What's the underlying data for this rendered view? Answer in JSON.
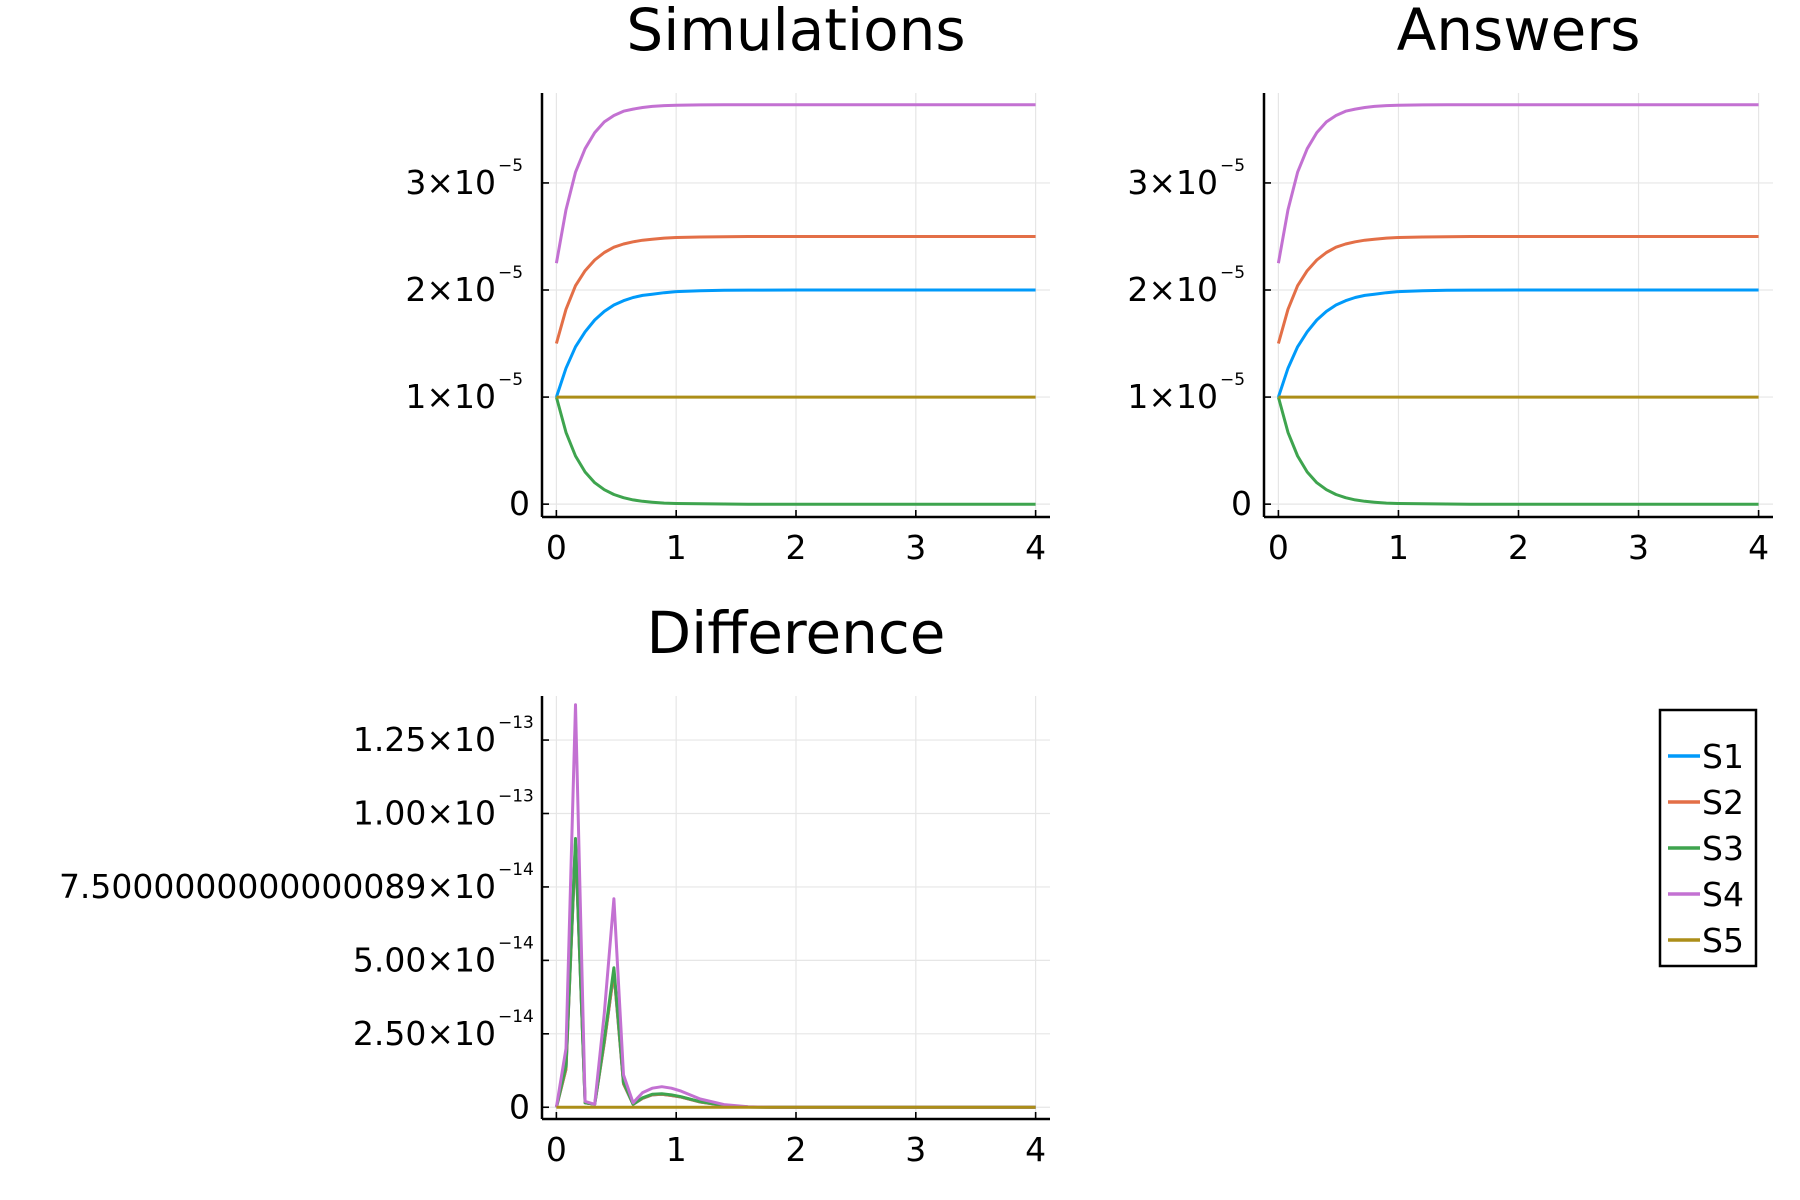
{
  "legend": {
    "position": "right",
    "entries": [
      {
        "label": "S1",
        "color": "#009AFA"
      },
      {
        "label": "S2",
        "color": "#E36F47"
      },
      {
        "label": "S3",
        "color": "#3EA44E"
      },
      {
        "label": "S4",
        "color": "#C371D2"
      },
      {
        "label": "S5",
        "color": "#AC8E18"
      }
    ]
  },
  "chart_data": [
    {
      "id": "simulations",
      "type": "line",
      "title": "Simulations",
      "xlabel": "",
      "ylabel": "",
      "xlim": [
        -0.12,
        4.12
      ],
      "ylim": [
        -1.2e-06,
        3.84e-05
      ],
      "grid": true,
      "x_ticks": [
        {
          "value": 0,
          "label": "0"
        },
        {
          "value": 1,
          "label": "1"
        },
        {
          "value": 2,
          "label": "2"
        },
        {
          "value": 3,
          "label": "3"
        },
        {
          "value": 4,
          "label": "4"
        }
      ],
      "y_ticks": [
        {
          "value": 0,
          "label": "0",
          "exp": ""
        },
        {
          "value": 1e-05,
          "label": "1×10",
          "exp": "−5"
        },
        {
          "value": 2e-05,
          "label": "2×10",
          "exp": "−5"
        },
        {
          "value": 3e-05,
          "label": "3×10",
          "exp": "−5"
        }
      ],
      "series": [
        {
          "name": "S1",
          "color": "#009AFA",
          "x": [
            0,
            0.08,
            0.16,
            0.24,
            0.32,
            0.4,
            0.48,
            0.56,
            0.64,
            0.72,
            0.8,
            0.9,
            1,
            1.2,
            1.4,
            1.6,
            2,
            2.5,
            3,
            3.5,
            4
          ],
          "values": [
            1e-05,
            1.27e-05,
            1.47e-05,
            1.61e-05,
            1.72e-05,
            1.8e-05,
            1.86e-05,
            1.9e-05,
            1.93e-05,
            1.95e-05,
            1.96e-05,
            1.975e-05,
            1.985e-05,
            1.993e-05,
            1.997e-05,
            1.999e-05,
            2e-05,
            2e-05,
            2e-05,
            2e-05,
            2e-05
          ]
        },
        {
          "name": "S2",
          "color": "#E36F47",
          "x": [
            0,
            0.08,
            0.16,
            0.24,
            0.32,
            0.4,
            0.48,
            0.56,
            0.64,
            0.72,
            0.8,
            0.9,
            1,
            1.2,
            1.4,
            1.6,
            2,
            2.5,
            3,
            3.5,
            4
          ],
          "values": [
            1.5e-05,
            1.82e-05,
            2.04e-05,
            2.18e-05,
            2.28e-05,
            2.35e-05,
            2.4e-05,
            2.43e-05,
            2.45e-05,
            2.465e-05,
            2.475e-05,
            2.485e-05,
            2.49e-05,
            2.495e-05,
            2.498e-05,
            2.5e-05,
            2.5e-05,
            2.5e-05,
            2.5e-05,
            2.5e-05,
            2.5e-05
          ]
        },
        {
          "name": "S3",
          "color": "#3EA44E",
          "x": [
            0,
            0.08,
            0.16,
            0.24,
            0.32,
            0.4,
            0.48,
            0.56,
            0.64,
            0.72,
            0.8,
            0.9,
            1,
            1.2,
            1.4,
            1.6,
            2,
            2.5,
            3,
            3.5,
            4
          ],
          "values": [
            1e-05,
            6.7e-06,
            4.5e-06,
            3e-06,
            2e-06,
            1.35e-06,
            9e-07,
            6e-07,
            4e-07,
            2.7e-07,
            1.8e-07,
            1e-07,
            6e-08,
            3e-08,
            1e-08,
            0,
            0,
            0,
            0,
            0,
            0
          ]
        },
        {
          "name": "S4",
          "color": "#C371D2",
          "x": [
            0,
            0.08,
            0.16,
            0.24,
            0.32,
            0.4,
            0.48,
            0.56,
            0.64,
            0.72,
            0.8,
            0.9,
            1,
            1.2,
            1.4,
            1.6,
            2,
            2.5,
            3,
            3.5,
            4
          ],
          "values": [
            2.25e-05,
            2.75e-05,
            3.1e-05,
            3.32e-05,
            3.47e-05,
            3.57e-05,
            3.63e-05,
            3.67e-05,
            3.69e-05,
            3.705e-05,
            3.715e-05,
            3.722e-05,
            3.726e-05,
            3.729e-05,
            3.73e-05,
            3.73e-05,
            3.73e-05,
            3.73e-05,
            3.73e-05,
            3.73e-05,
            3.73e-05
          ]
        },
        {
          "name": "S5",
          "color": "#AC8E18",
          "x": [
            0,
            4
          ],
          "values": [
            1e-05,
            1e-05
          ]
        }
      ]
    },
    {
      "id": "answers",
      "type": "line",
      "title": "Answers",
      "xlabel": "",
      "ylabel": "",
      "xlim": [
        -0.12,
        4.12
      ],
      "ylim": [
        -1.2e-06,
        3.84e-05
      ],
      "grid": true,
      "x_ticks": [
        {
          "value": 0,
          "label": "0"
        },
        {
          "value": 1,
          "label": "1"
        },
        {
          "value": 2,
          "label": "2"
        },
        {
          "value": 3,
          "label": "3"
        },
        {
          "value": 4,
          "label": "4"
        }
      ],
      "y_ticks": [
        {
          "value": 0,
          "label": "0",
          "exp": ""
        },
        {
          "value": 1e-05,
          "label": "1×10",
          "exp": "−5"
        },
        {
          "value": 2e-05,
          "label": "2×10",
          "exp": "−5"
        },
        {
          "value": 3e-05,
          "label": "3×10",
          "exp": "−5"
        }
      ],
      "series": [
        {
          "name": "S1",
          "color": "#009AFA",
          "x": [
            0,
            0.08,
            0.16,
            0.24,
            0.32,
            0.4,
            0.48,
            0.56,
            0.64,
            0.72,
            0.8,
            0.9,
            1,
            1.2,
            1.4,
            1.6,
            2,
            2.5,
            3,
            3.5,
            4
          ],
          "values": [
            1e-05,
            1.27e-05,
            1.47e-05,
            1.61e-05,
            1.72e-05,
            1.8e-05,
            1.86e-05,
            1.9e-05,
            1.93e-05,
            1.95e-05,
            1.96e-05,
            1.975e-05,
            1.985e-05,
            1.993e-05,
            1.997e-05,
            1.999e-05,
            2e-05,
            2e-05,
            2e-05,
            2e-05,
            2e-05
          ]
        },
        {
          "name": "S2",
          "color": "#E36F47",
          "x": [
            0,
            0.08,
            0.16,
            0.24,
            0.32,
            0.4,
            0.48,
            0.56,
            0.64,
            0.72,
            0.8,
            0.9,
            1,
            1.2,
            1.4,
            1.6,
            2,
            2.5,
            3,
            3.5,
            4
          ],
          "values": [
            1.5e-05,
            1.82e-05,
            2.04e-05,
            2.18e-05,
            2.28e-05,
            2.35e-05,
            2.4e-05,
            2.43e-05,
            2.45e-05,
            2.465e-05,
            2.475e-05,
            2.485e-05,
            2.49e-05,
            2.495e-05,
            2.498e-05,
            2.5e-05,
            2.5e-05,
            2.5e-05,
            2.5e-05,
            2.5e-05,
            2.5e-05
          ]
        },
        {
          "name": "S3",
          "color": "#3EA44E",
          "x": [
            0,
            0.08,
            0.16,
            0.24,
            0.32,
            0.4,
            0.48,
            0.56,
            0.64,
            0.72,
            0.8,
            0.9,
            1,
            1.2,
            1.4,
            1.6,
            2,
            2.5,
            3,
            3.5,
            4
          ],
          "values": [
            1e-05,
            6.7e-06,
            4.5e-06,
            3e-06,
            2e-06,
            1.35e-06,
            9e-07,
            6e-07,
            4e-07,
            2.7e-07,
            1.8e-07,
            1e-07,
            6e-08,
            3e-08,
            1e-08,
            0,
            0,
            0,
            0,
            0,
            0
          ]
        },
        {
          "name": "S4",
          "color": "#C371D2",
          "x": [
            0,
            0.08,
            0.16,
            0.24,
            0.32,
            0.4,
            0.48,
            0.56,
            0.64,
            0.72,
            0.8,
            0.9,
            1,
            1.2,
            1.4,
            1.6,
            2,
            2.5,
            3,
            3.5,
            4
          ],
          "values": [
            2.25e-05,
            2.75e-05,
            3.1e-05,
            3.32e-05,
            3.47e-05,
            3.57e-05,
            3.63e-05,
            3.67e-05,
            3.69e-05,
            3.705e-05,
            3.715e-05,
            3.722e-05,
            3.726e-05,
            3.729e-05,
            3.73e-05,
            3.73e-05,
            3.73e-05,
            3.73e-05,
            3.73e-05,
            3.73e-05,
            3.73e-05
          ]
        },
        {
          "name": "S5",
          "color": "#AC8E18",
          "x": [
            0,
            4
          ],
          "values": [
            1e-05,
            1e-05
          ]
        }
      ]
    },
    {
      "id": "difference",
      "type": "line",
      "title": "Difference",
      "xlabel": "",
      "ylabel": "",
      "xlim": [
        -0.12,
        4.12
      ],
      "ylim": [
        -4e-15,
        1.4e-13
      ],
      "grid": true,
      "x_ticks": [
        {
          "value": 0,
          "label": "0"
        },
        {
          "value": 1,
          "label": "1"
        },
        {
          "value": 2,
          "label": "2"
        },
        {
          "value": 3,
          "label": "3"
        },
        {
          "value": 4,
          "label": "4"
        }
      ],
      "y_ticks": [
        {
          "value": 0,
          "label": "0",
          "exp": ""
        },
        {
          "value": 2.5e-14,
          "label": "2.50×10",
          "exp": "−14"
        },
        {
          "value": 5e-14,
          "label": "5.00×10",
          "exp": "−14"
        },
        {
          "value": 7.5e-14,
          "label": "7.5000000000000089×10",
          "exp": "−14"
        },
        {
          "value": 1e-13,
          "label": "1.00×10",
          "exp": "−13"
        },
        {
          "value": 1.25e-13,
          "label": "1.25×10",
          "exp": "−13"
        }
      ],
      "series": [
        {
          "name": "S1",
          "color": "#009AFA",
          "x": [
            0,
            0.08,
            0.16,
            0.24,
            0.32,
            0.4,
            0.48,
            0.56,
            0.64,
            0.72,
            0.8,
            0.88,
            0.96,
            1.04,
            1.2,
            1.4,
            1.6,
            1.8,
            2,
            3,
            4
          ],
          "values": [
            0,
            1.3e-14,
            9e-14,
            1.5e-15,
            1e-15,
            2.2e-14,
            4.6e-14,
            8e-15,
            1e-15,
            3e-15,
            4.2e-15,
            4.4e-15,
            4e-15,
            3.5e-15,
            1.8e-15,
            6e-16,
            1e-16,
            0,
            0,
            0,
            0
          ]
        },
        {
          "name": "S2",
          "color": "#E36F47",
          "x": [
            0,
            0.08,
            0.16,
            0.24,
            0.32,
            0.4,
            0.48,
            0.56,
            0.64,
            0.72,
            0.8,
            0.88,
            0.96,
            1.04,
            1.2,
            1.4,
            1.6,
            1.8,
            2,
            3,
            4
          ],
          "values": [
            0,
            1.3e-14,
            9e-14,
            1.5e-15,
            1e-15,
            2.2e-14,
            4.6e-14,
            8e-15,
            1e-15,
            3e-15,
            4.2e-15,
            4.4e-15,
            4e-15,
            3.5e-15,
            1.8e-15,
            6e-16,
            1e-16,
            0,
            0,
            0,
            0
          ]
        },
        {
          "name": "S3",
          "color": "#3EA44E",
          "x": [
            0,
            0.08,
            0.16,
            0.24,
            0.32,
            0.4,
            0.48,
            0.56,
            0.64,
            0.72,
            0.8,
            0.88,
            0.96,
            1.04,
            1.2,
            1.4,
            1.6,
            1.8,
            2,
            3,
            4
          ],
          "values": [
            0,
            1.4e-14,
            9.15e-14,
            1.5e-15,
            1e-15,
            2.3e-14,
            4.75e-14,
            8.5e-15,
            1e-15,
            3.2e-15,
            4.4e-15,
            4.6e-15,
            4.2e-15,
            3.6e-15,
            1.9e-15,
            6e-16,
            1e-16,
            0,
            0,
            0,
            0
          ]
        },
        {
          "name": "S4",
          "color": "#C371D2",
          "x": [
            0,
            0.08,
            0.16,
            0.24,
            0.32,
            0.4,
            0.48,
            0.56,
            0.64,
            0.72,
            0.8,
            0.88,
            0.96,
            1.04,
            1.2,
            1.4,
            1.6,
            1.8,
            2,
            3,
            4
          ],
          "values": [
            0,
            2e-14,
            1.37e-13,
            2e-15,
            1e-15,
            3.2e-14,
            7.1e-14,
            1.1e-14,
            1.5e-15,
            5e-15,
            6.5e-15,
            7e-15,
            6.5e-15,
            5.5e-15,
            2.8e-15,
            9e-16,
            2e-16,
            0,
            0,
            0,
            0
          ]
        },
        {
          "name": "S5",
          "color": "#AC8E18",
          "x": [
            0,
            4
          ],
          "values": [
            0,
            0
          ]
        }
      ]
    }
  ]
}
